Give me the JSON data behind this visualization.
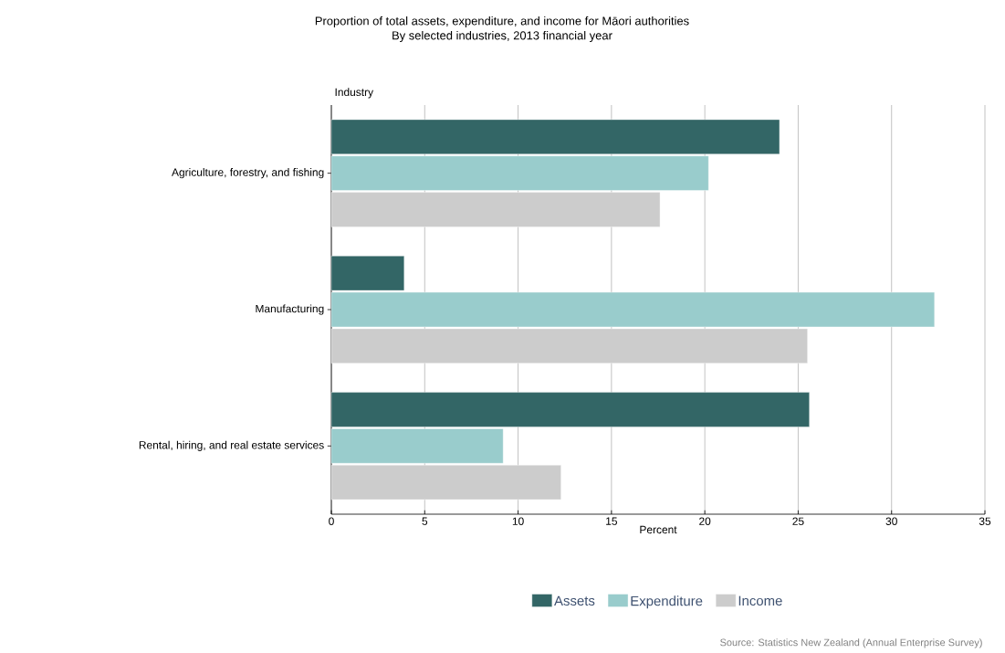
{
  "chart_data": {
    "type": "bar",
    "orientation": "horizontal",
    "title": "Proportion of total assets, expenditure, and income for Māori authorities",
    "subtitle": "By selected industries, 2013 financial year",
    "ylabel": "Industry",
    "xlabel": "Percent",
    "categories": [
      "Agriculture, forestry, and fishing",
      "Manufacturing",
      "Rental, hiring, and real estate services"
    ],
    "series": [
      {
        "name": "Assets",
        "color": "#336666",
        "values": [
          24.0,
          3.9,
          25.6
        ]
      },
      {
        "name": "Expenditure",
        "color": "#99cccc",
        "values": [
          20.2,
          32.3,
          9.2
        ]
      },
      {
        "name": "Income",
        "color": "#cccccc",
        "values": [
          17.6,
          25.5,
          12.3
        ]
      }
    ],
    "xlim": [
      0,
      35
    ],
    "xticks": [
      0,
      5,
      10,
      15,
      20,
      25,
      30,
      35
    ],
    "grid": "x",
    "legend": "bottom",
    "annotations": [
      "Source: Statistics New Zealand (Annual Enterprise Survey)"
    ]
  }
}
